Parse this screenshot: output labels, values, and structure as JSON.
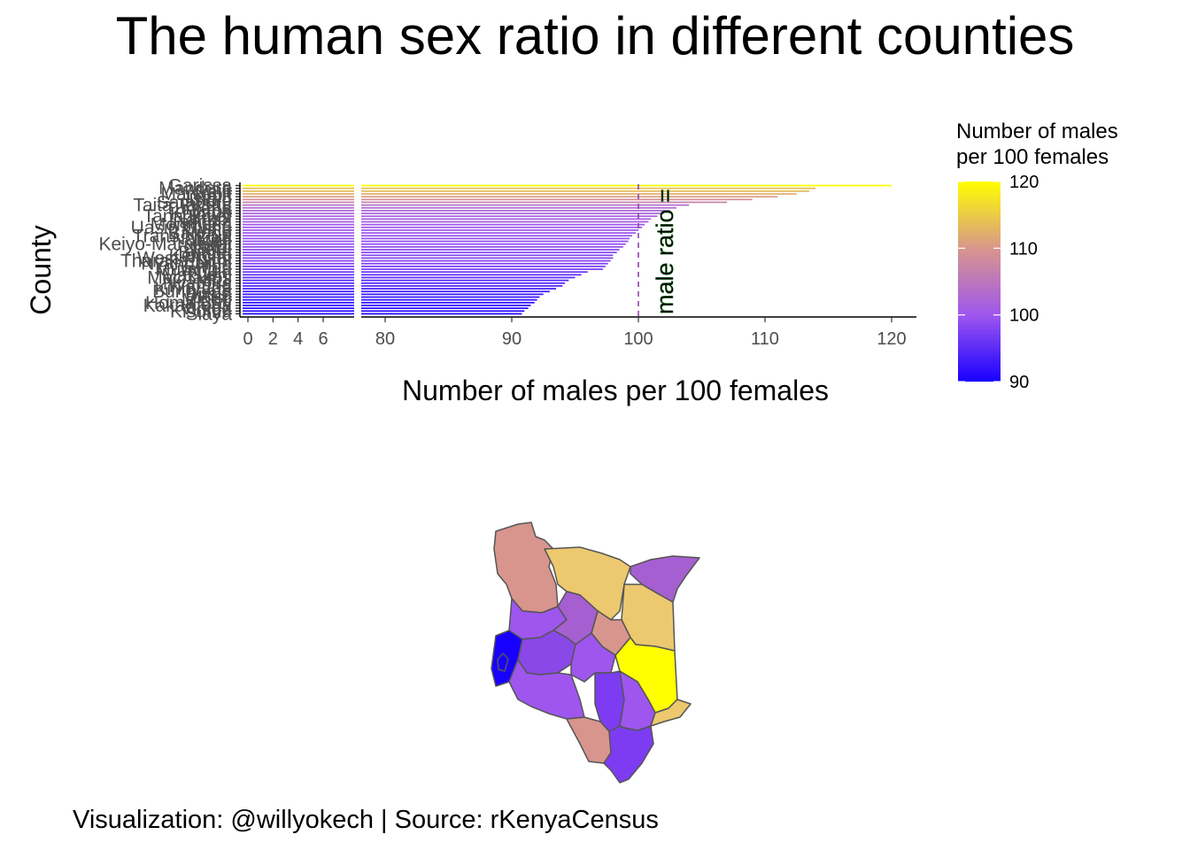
{
  "title": "The human sex ratio in different counties",
  "caption": "Visualization: @willyokech | Source: rKenyaCensus",
  "chart_data": {
    "type": "bar",
    "orientation": "horizontal",
    "axis_break": {
      "from": 7,
      "to": 77
    },
    "xlabel": "Number of males per 100 females",
    "ylabel": "County",
    "xlim": [
      -0.5,
      122
    ],
    "x_ticks": [
      0,
      2,
      4,
      6,
      80,
      90,
      100,
      110,
      120
    ],
    "reference_line": {
      "x": 100,
      "label": "male ratio =",
      "color": "#8e44ad",
      "style": "dashed"
    },
    "legend": {
      "title_lines": [
        "Number of males",
        "per 100 females"
      ],
      "ticks": [
        90,
        100,
        110,
        120
      ],
      "range": [
        90,
        120
      ],
      "colors": [
        "#1800ff",
        "#9e56ee",
        "#d8958e",
        "#ffff00"
      ],
      "position": "right"
    },
    "categories": [
      "Garissa",
      "Mandera",
      "Wajir",
      "Marsabit",
      "Lamu",
      "Isiolo",
      "Samburu",
      "Taita Taveta",
      "Turkana",
      "Narok",
      "Kajiado",
      "Tana River",
      "Nairobi",
      "Laikipia",
      "Mombasa",
      "Uasin Gishu",
      "Kwale",
      "Baringo",
      "Trans Nzoia",
      "Nakuru",
      "Kilifi",
      "Keiyo-Marakwet",
      "Nandi",
      "Meru",
      "Bomet",
      "Kericho",
      "West Pokot",
      "Tharaka-Nithi",
      "Nyandarua",
      "Embu",
      "Murang'a",
      "Nyeri",
      "Makueni",
      "Machakos",
      "Kitui",
      "Nyamira",
      "Kiambu",
      "Kirinyaga",
      "Bungoma",
      "Busia",
      "Kisii",
      "Migori",
      "Homa Bay",
      "Kakamega",
      "Vihiga",
      "Kisumu",
      "Siaya"
    ],
    "values": [
      120.0,
      114.0,
      113.5,
      112.5,
      111.0,
      109.0,
      107.0,
      104.0,
      103.0,
      102.5,
      102.0,
      101.5,
      101.0,
      100.8,
      100.5,
      100.3,
      100.0,
      99.8,
      99.5,
      99.3,
      99.2,
      99.0,
      98.8,
      98.5,
      98.3,
      98.0,
      98.0,
      97.8,
      97.6,
      97.4,
      97.2,
      96.0,
      95.5,
      95.0,
      94.5,
      94.2,
      94.0,
      93.5,
      93.0,
      92.5,
      92.2,
      92.0,
      91.8,
      91.5,
      91.3,
      91.0,
      90.8
    ],
    "map": {
      "description_colors_by_value": true,
      "region_values": [
        107,
        112,
        103,
        120,
        101,
        95,
        99,
        100,
        98,
        97,
        104,
        92,
        93,
        90,
        91
      ]
    }
  }
}
